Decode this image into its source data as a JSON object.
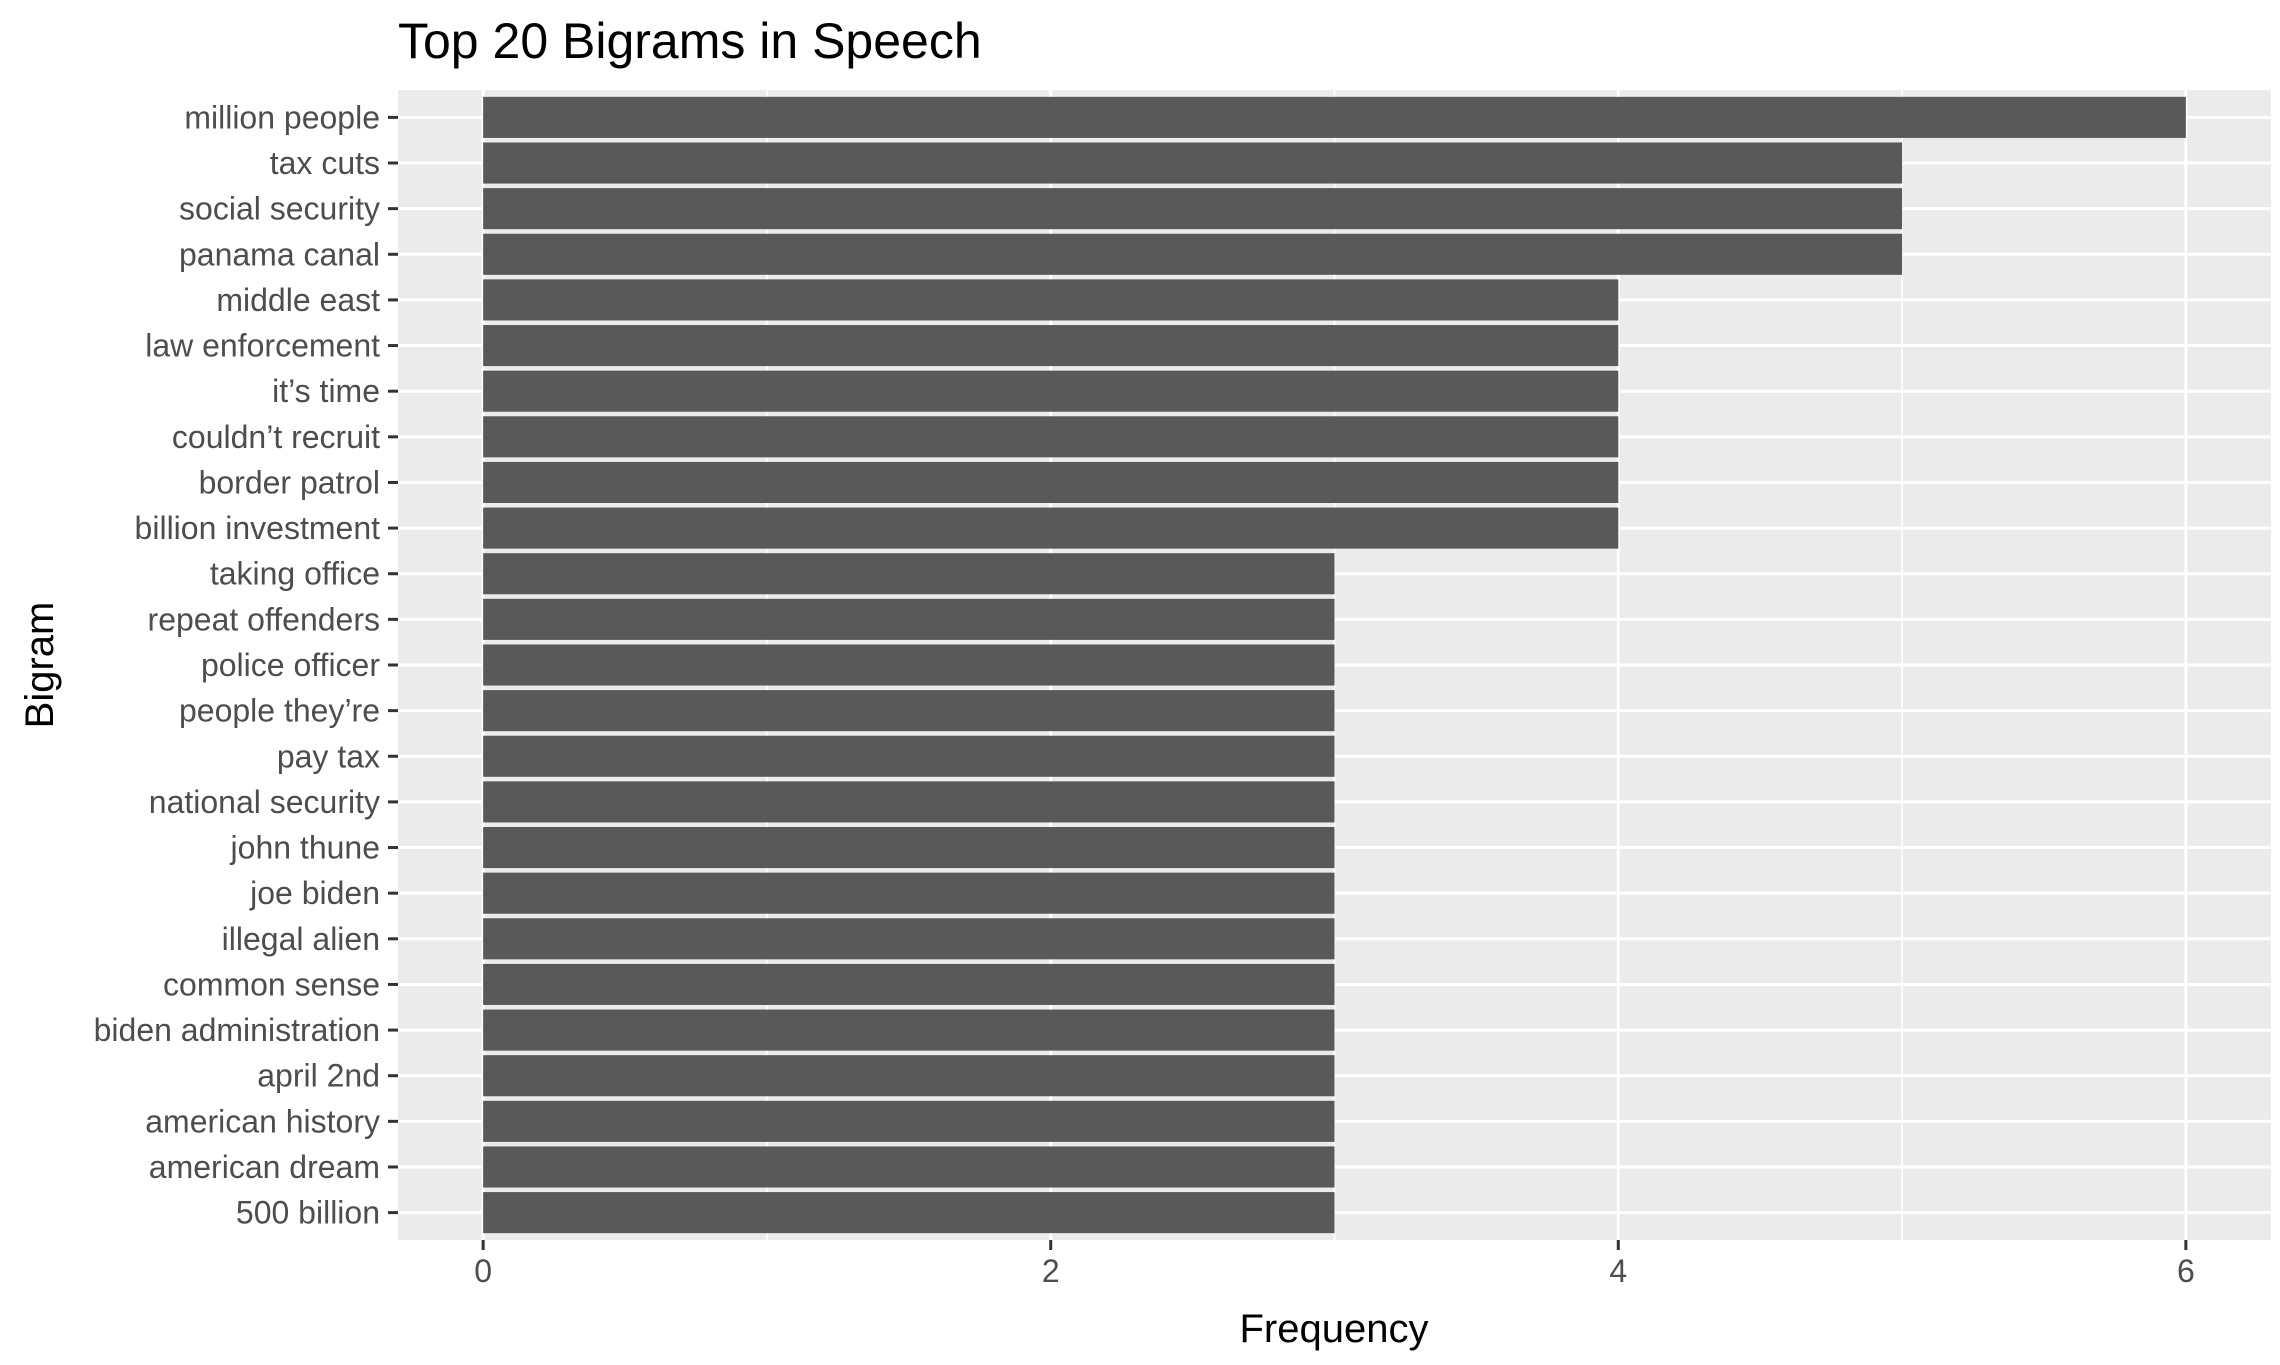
{
  "chart_data": {
    "type": "bar",
    "orientation": "horizontal",
    "title": "Top 20 Bigrams in Speech",
    "xlabel": "Frequency",
    "ylabel": "Bigram",
    "xlim": [
      -0.3,
      6.3
    ],
    "x_ticks": [
      0,
      2,
      4,
      6
    ],
    "grid": true,
    "legend": "none",
    "colors": {
      "bar": "#595959",
      "panel": "#ebebeb",
      "grid": "#ffffff",
      "tick": "#333333"
    },
    "categories": [
      "million people",
      "tax cuts",
      "social security",
      "panama canal",
      "middle east",
      "law enforcement",
      "it’s time",
      "couldn’t recruit",
      "border patrol",
      "billion investment",
      "taking office",
      "repeat offenders",
      "police officer",
      "people they’re",
      "pay tax",
      "national security",
      "john thune",
      "joe biden",
      "illegal alien",
      "common sense",
      "biden administration",
      "april 2nd",
      "american history",
      "american dream",
      "500 billion"
    ],
    "values": [
      6,
      5,
      5,
      5,
      4,
      4,
      4,
      4,
      4,
      4,
      3,
      3,
      3,
      3,
      3,
      3,
      3,
      3,
      3,
      3,
      3,
      3,
      3,
      3,
      3
    ]
  }
}
